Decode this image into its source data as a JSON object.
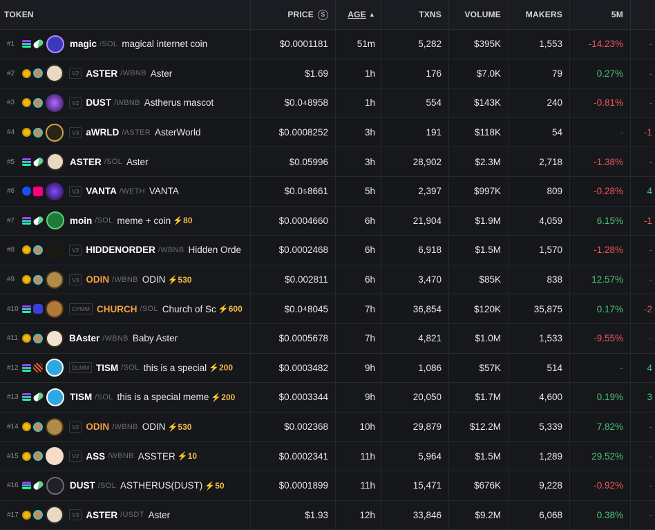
{
  "header": {
    "token": "TOKEN",
    "price": "PRICE",
    "price_icon": "dollar-circle-icon",
    "age": "AGE",
    "age_sort_icon": "sort-ascending-icon",
    "txns": "TXNS",
    "volume": "VOLUME",
    "makers": "MAKERS",
    "m5": "5M"
  },
  "colors": {
    "positive": "#49c27b",
    "negative": "#f0555a",
    "boost": "#f0b84a",
    "accent_symbol": "#f0a23c"
  },
  "rows": [
    {
      "rank": "#1",
      "chain": "solana",
      "dex": "pump",
      "badge": "",
      "symbol": "magic",
      "quote": "/SOL",
      "name": "magical internet coin",
      "boost": "",
      "price": "$0.0001181",
      "age": "51m",
      "txns": "5,282",
      "volume": "$395K",
      "makers": "1,553",
      "m5": "-14.23%",
      "next": "-"
    },
    {
      "rank": "#2",
      "chain": "bnb",
      "dex": "four",
      "badge": "V2",
      "symbol": "ASTER",
      "quote": "/WBNB",
      "name": "Aster",
      "boost": "",
      "price": "$1.69",
      "age": "1h",
      "txns": "176",
      "volume": "$7.0K",
      "makers": "79",
      "m5": "0.27%",
      "next": "-"
    },
    {
      "rank": "#3",
      "chain": "bnb",
      "dex": "pancakeswap",
      "badge": "V2",
      "symbol": "DUST",
      "quote": "/WBNB",
      "name": "Astherus mascot",
      "boost": "",
      "price_pre": "$0.0",
      "price_sub": "4",
      "price_post": "8958",
      "age": "1h",
      "txns": "554",
      "volume": "$143K",
      "makers": "240",
      "m5": "-0.81%",
      "next": "-"
    },
    {
      "rank": "#4",
      "chain": "bnb",
      "dex": "pancakeswap",
      "badge": "V3",
      "symbol": "aWRLD",
      "quote": "/ASTER",
      "name": "AsterWorld",
      "boost": "",
      "price": "$0.0008252",
      "age": "3h",
      "txns": "191",
      "volume": "$118K",
      "makers": "54",
      "m5": "-",
      "next": "-1"
    },
    {
      "rank": "#5",
      "chain": "solana",
      "dex": "pump",
      "badge": "",
      "symbol": "ASTER",
      "quote": "/SOL",
      "name": "Aster",
      "boost": "",
      "price": "$0.05996",
      "age": "3h",
      "txns": "28,902",
      "volume": "$2.3M",
      "makers": "2,718",
      "m5": "-1.38%",
      "next": "-"
    },
    {
      "rank": "#6",
      "chain": "base",
      "dex": "uniswap",
      "badge": "V3",
      "symbol": "VANTA",
      "quote": "/WETH",
      "name": "VANTA",
      "boost": "",
      "price_pre": "$0.0",
      "price_sub": "5",
      "price_post": "8661",
      "age": "5h",
      "txns": "2,397",
      "volume": "$997K",
      "makers": "809",
      "m5": "-0.28%",
      "next": "4"
    },
    {
      "rank": "#7",
      "chain": "solana",
      "dex": "pump",
      "badge": "",
      "symbol": "moin",
      "quote": "/SOL",
      "name": "meme + coin",
      "boost": "⚡80",
      "price": "$0.0004660",
      "age": "6h",
      "txns": "21,904",
      "volume": "$1.9M",
      "makers": "4,059",
      "m5": "6.15%",
      "next": "-1"
    },
    {
      "rank": "#8",
      "chain": "bnb",
      "dex": "pancakeswap",
      "badge": "V2",
      "symbol": "HIDDENORDER",
      "quote": "/WBNB",
      "name": "Hidden Orde",
      "boost": "",
      "price": "$0.0002468",
      "age": "6h",
      "txns": "6,918",
      "volume": "$1.5M",
      "makers": "1,570",
      "m5": "-1.28%",
      "next": "-"
    },
    {
      "rank": "#9",
      "chain": "bnb",
      "dex": "pancakeswap",
      "badge": "V3",
      "symbol": "ODIN",
      "quote": "/WBNB",
      "name": "ODIN",
      "boost": "⚡530",
      "price": "$0.002811",
      "age": "6h",
      "txns": "3,470",
      "volume": "$85K",
      "makers": "838",
      "m5": "12.57%",
      "next": "-"
    },
    {
      "rank": "#10",
      "chain": "solana",
      "dex": "raydium",
      "badge": "CPMM",
      "symbol": "CHURCH",
      "quote": "/SOL",
      "name": "Church of Sc",
      "boost": "⚡600",
      "price_pre": "$0.0",
      "price_sub": "4",
      "price_post": "8045",
      "age": "7h",
      "txns": "36,854",
      "volume": "$120K",
      "makers": "35,875",
      "m5": "0.17%",
      "next": "-2"
    },
    {
      "rank": "#11",
      "chain": "bnb",
      "dex": "pancakeswap",
      "badge": "",
      "symbol": "BAster",
      "quote": "/WBNB",
      "name": "Baby Aster",
      "boost": "",
      "price": "$0.0005678",
      "age": "7h",
      "txns": "4,821",
      "volume": "$1.0M",
      "makers": "1,533",
      "m5": "-9.55%",
      "next": "-"
    },
    {
      "rank": "#12",
      "chain": "solana",
      "dex": "meteora",
      "badge": "DLMM",
      "symbol": "TISM",
      "quote": "/SOL",
      "name": "this is a special",
      "boost": "⚡200",
      "price": "$0.0003482",
      "age": "9h",
      "txns": "1,086",
      "volume": "$57K",
      "makers": "514",
      "m5": "-",
      "next": "4"
    },
    {
      "rank": "#13",
      "chain": "solana",
      "dex": "pump",
      "badge": "",
      "symbol": "TISM",
      "quote": "/SOL",
      "name": "this is a special meme",
      "boost": "⚡200",
      "price": "$0.0003344",
      "age": "9h",
      "txns": "20,050",
      "volume": "$1.7M",
      "makers": "4,600",
      "m5": "0.19%",
      "next": "3"
    },
    {
      "rank": "#14",
      "chain": "bnb",
      "dex": "pancakeswap",
      "badge": "V2",
      "symbol": "ODIN",
      "quote": "/WBNB",
      "name": "ODIN",
      "boost": "⚡530",
      "price": "$0.002368",
      "age": "10h",
      "txns": "29,879",
      "volume": "$12.2M",
      "makers": "5,339",
      "m5": "7.82%",
      "next": "-"
    },
    {
      "rank": "#15",
      "chain": "bnb",
      "dex": "pancakeswap",
      "badge": "V2",
      "symbol": "ASS",
      "quote": "/WBNB",
      "name": "ASSTER",
      "boost": "⚡10",
      "price": "$0.0002341",
      "age": "11h",
      "txns": "5,964",
      "volume": "$1.5M",
      "makers": "1,289",
      "m5": "29.52%",
      "next": "-"
    },
    {
      "rank": "#16",
      "chain": "solana",
      "dex": "pump",
      "badge": "",
      "symbol": "DUST",
      "quote": "/SOL",
      "name": "ASTHERUS(DUST)",
      "boost": "⚡50",
      "price": "$0.0001899",
      "age": "11h",
      "txns": "15,471",
      "volume": "$676K",
      "makers": "9,228",
      "m5": "-0.92%",
      "next": "-"
    },
    {
      "rank": "#17",
      "chain": "bnb",
      "dex": "pancakeswap",
      "badge": "V3",
      "symbol": "ASTER",
      "quote": "/USDT",
      "name": "Aster",
      "boost": "",
      "price": "$1.93",
      "age": "12h",
      "txns": "33,846",
      "volume": "$9.2M",
      "makers": "6,068",
      "m5": "0.38%",
      "next": "-"
    }
  ]
}
